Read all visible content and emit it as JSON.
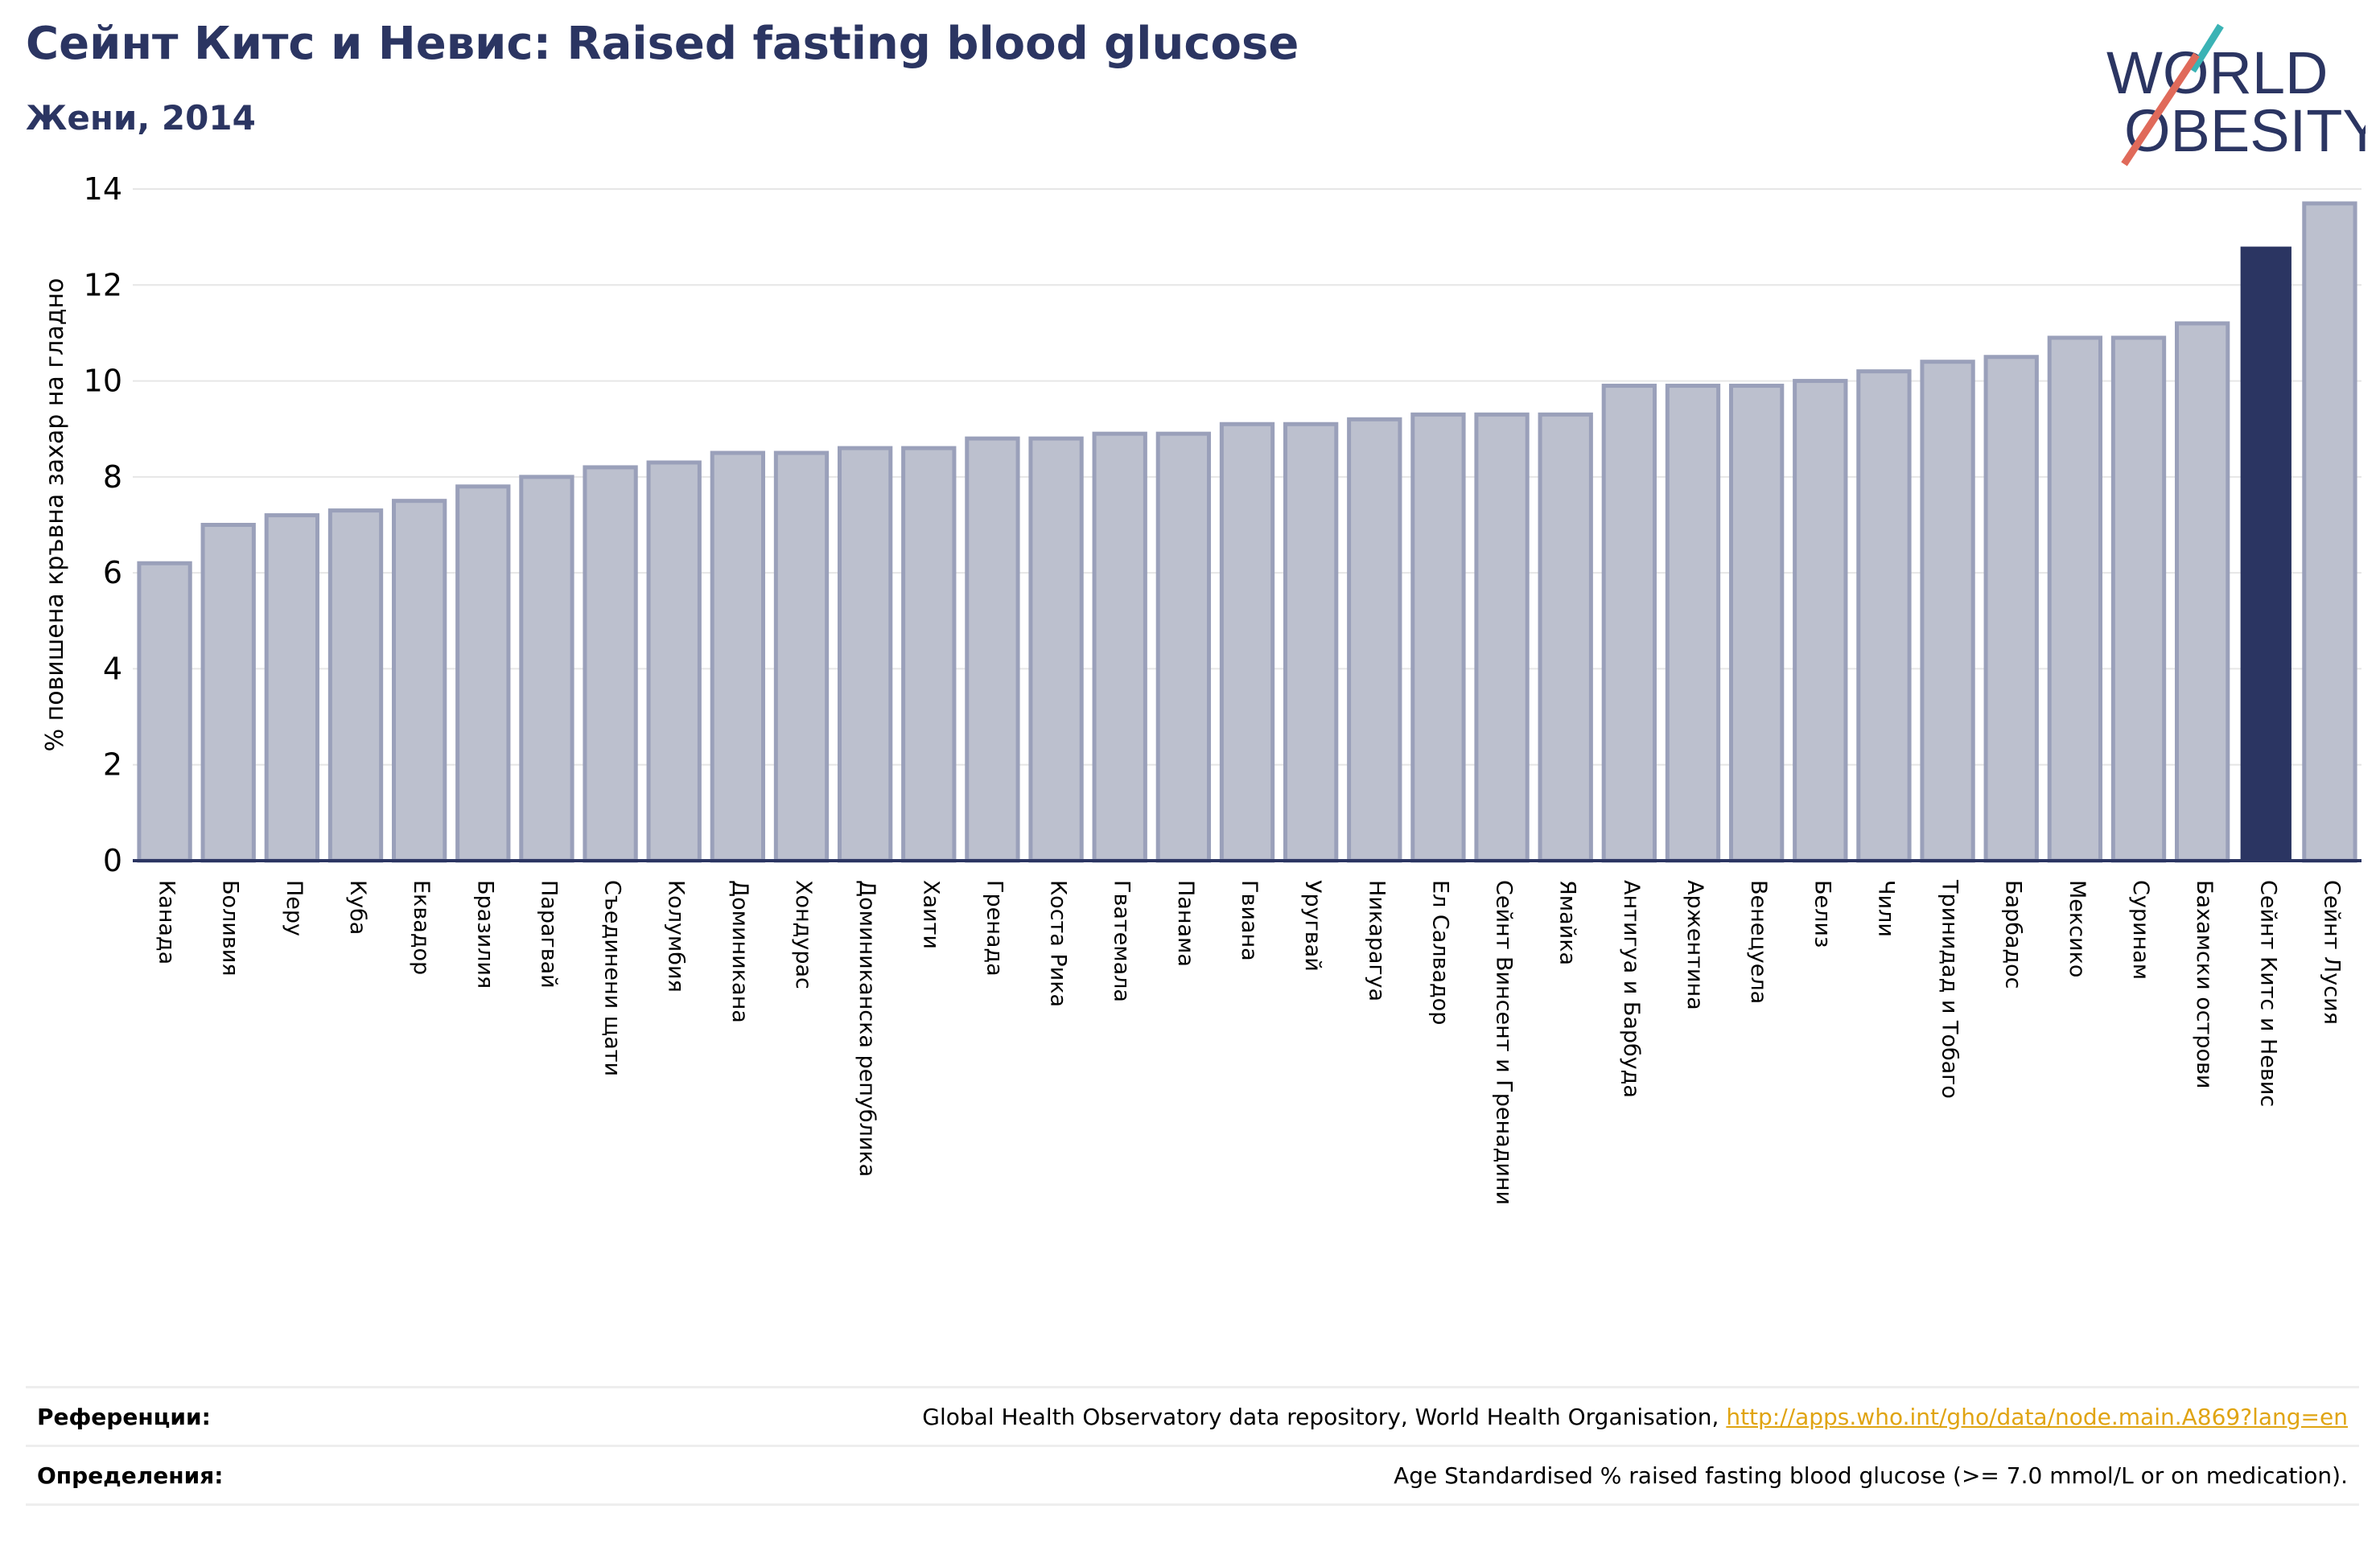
{
  "header": {
    "title": "Сейнт Китс и Невис: Raised fasting blood glucose",
    "subtitle": "Жени, 2014"
  },
  "logo": {
    "line1": "WORLD",
    "line2": "OBESITY"
  },
  "colors": {
    "bar": "#bcc0ce",
    "bar_edge": "#9aa0ba",
    "highlight": "#2b3562",
    "grid": "#e6e6e6",
    "axis": "#2b3562",
    "text": "#2b3562",
    "link": "#e0a412"
  },
  "chart_data": {
    "type": "bar",
    "ylabel": "% повишена кръвна захар на гладно",
    "ylim": [
      0,
      14
    ],
    "yticks": [
      0,
      2,
      4,
      6,
      8,
      10,
      12,
      14
    ],
    "grid": true,
    "highlight": "Сейнт Китс и Невис",
    "categories": [
      "Канада",
      "Боливия",
      "Перу",
      "Куба",
      "Еквадор",
      "Бразилия",
      "Парагвай",
      "Съединени щати",
      "Колумбия",
      "Доминикана",
      "Хондурас",
      "Доминиканска република",
      "Хаити",
      "Гренада",
      "Коста Рика",
      "Гватемала",
      "Панама",
      "Гвиана",
      "Уругвай",
      "Никарагуа",
      "Ел Салвадор",
      "Сейнт Винсент и Гренадини",
      "Ямайка",
      "Антигуа и Барбуда",
      "Аржентина",
      "Венецуела",
      "Белиз",
      "Чили",
      "Тринидад и Тобаго",
      "Барбадос",
      "Мексико",
      "Суринам",
      "Бахамски острови",
      "Сейнт Китс и Невис",
      "Сейнт Лусия"
    ],
    "values": [
      6.2,
      7.0,
      7.2,
      7.3,
      7.5,
      7.8,
      8.0,
      8.2,
      8.3,
      8.5,
      8.5,
      8.6,
      8.6,
      8.8,
      8.8,
      8.9,
      8.9,
      9.1,
      9.1,
      9.2,
      9.3,
      9.3,
      9.3,
      9.9,
      9.9,
      9.9,
      10.0,
      10.2,
      10.4,
      10.5,
      10.9,
      10.9,
      11.2,
      12.8,
      13.7
    ]
  },
  "footer": {
    "references_label": "Референции:",
    "references_text": "Global Health Observatory data repository, World Health Organisation, ",
    "references_link": "http://apps.who.int/gho/data/node.main.A869?lang=en",
    "definitions_label": "Определения:",
    "definitions_text": "Age Standardised % raised fasting blood glucose (>= 7.0 mmol/L or on medication)."
  }
}
